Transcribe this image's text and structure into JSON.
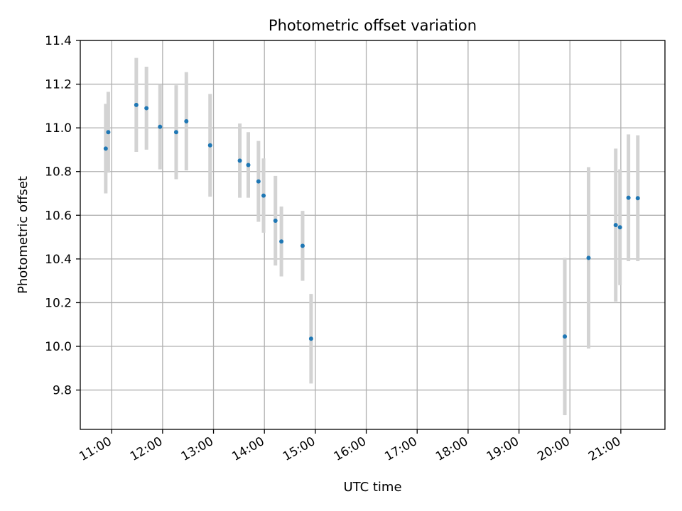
{
  "chart_data": {
    "type": "scatter",
    "title": "Photometric offset variation",
    "xlabel": "UTC time",
    "ylabel": "Photometric offset",
    "x_ticks": [
      "11:00",
      "12:00",
      "13:00",
      "14:00",
      "15:00",
      "16:00",
      "17:00",
      "18:00",
      "19:00",
      "20:00",
      "21:00"
    ],
    "y_ticks": [
      "9.8",
      "10.0",
      "10.2",
      "10.4",
      "10.6",
      "10.8",
      "11.0",
      "11.2",
      "11.4"
    ],
    "xlim": [
      "10:23",
      "21:52"
    ],
    "ylim": [
      9.62,
      11.4
    ],
    "grid": true,
    "colors": {
      "points": "#1f77b4",
      "errorbars": "#d3d3d3",
      "grid": "#b0b0b0"
    },
    "points": [
      {
        "x": "10:53",
        "y": 10.905,
        "yerr": 0.205
      },
      {
        "x": "10:56",
        "y": 10.98,
        "yerr": 0.185
      },
      {
        "x": "11:29",
        "y": 11.105,
        "yerr": 0.215
      },
      {
        "x": "11:41",
        "y": 11.09,
        "yerr": 0.19
      },
      {
        "x": "11:57",
        "y": 11.005,
        "yerr": 0.195
      },
      {
        "x": "12:16",
        "y": 10.98,
        "yerr": 0.215
      },
      {
        "x": "12:28",
        "y": 11.03,
        "yerr": 0.225
      },
      {
        "x": "12:56",
        "y": 10.92,
        "yerr": 0.235
      },
      {
        "x": "13:31",
        "y": 10.85,
        "yerr": 0.17
      },
      {
        "x": "13:41",
        "y": 10.83,
        "yerr": 0.15
      },
      {
        "x": "13:53",
        "y": 10.755,
        "yerr": 0.185
      },
      {
        "x": "13:59",
        "y": 10.69,
        "yerr": 0.17
      },
      {
        "x": "14:13",
        "y": 10.575,
        "yerr": 0.205
      },
      {
        "x": "14:20",
        "y": 10.48,
        "yerr": 0.16
      },
      {
        "x": "14:45",
        "y": 10.46,
        "yerr": 0.16
      },
      {
        "x": "14:55",
        "y": 10.035,
        "yerr": 0.205
      },
      {
        "x": "19:54",
        "y": 10.045,
        "yerr": 0.36
      },
      {
        "x": "20:22",
        "y": 10.405,
        "yerr": 0.415
      },
      {
        "x": "20:54",
        "y": 10.555,
        "yerr": 0.35
      },
      {
        "x": "20:59",
        "y": 10.545,
        "yerr": 0.265
      },
      {
        "x": "21:09",
        "y": 10.68,
        "yerr": 0.29
      },
      {
        "x": "21:20",
        "y": 10.678,
        "yerr": 0.288
      }
    ]
  }
}
